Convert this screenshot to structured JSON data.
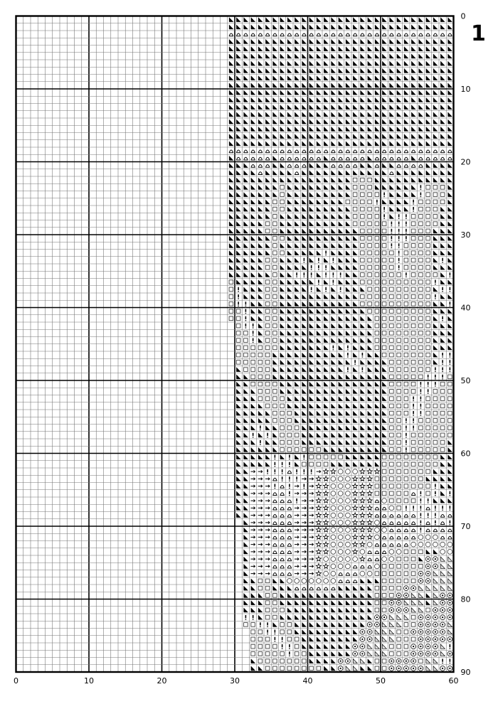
{
  "page_number": "1",
  "grid": {
    "columns": 60,
    "rows": 90,
    "major_every": 10,
    "pattern_start_column": 29
  },
  "x_axis_labels": [
    "0",
    "10",
    "20",
    "30",
    "40",
    "50",
    "60"
  ],
  "y_axis_labels": [
    "0",
    "10",
    "20",
    "30",
    "40",
    "50",
    "60",
    "70",
    "80",
    "90"
  ],
  "symbol_key": {
    "B": "black-triangle",
    "L": "light-triangle",
    "H": "bell-outline",
    "S": "square-outline",
    "!": "exclamation",
    "A": "arrow-right",
    "O": "circle-outline",
    "T": "star-outline",
    "D": "dot-circle",
    ".": "empty"
  },
  "pattern_rows": [
    "BBBBBBBBBBBBBBBBBBBBBBBBBBBBBBB",
    "BBBBBBBBBBBBBBBBBBBBBBBBBBBBBBB",
    "HHHHHHHHHHHHHHHHHHHHHHHHHHHHHHH",
    "BBBBBBBBBBBBBBBBBBBBBBBBBBBBBBB",
    "BBBBBBBBBBBBBBBBBBBBBBBBBBBBBBB",
    "BBBBBBBBBBBBBBBBBBBBBBBBBBBBBBB",
    "BBBBBBBBBBBBBBBBBBBBBBBBBBBBBBB",
    "BBBBBBBBBBBBBBBBBBBBBBBBBBBBBBB",
    "BBBBBBBBBBBBBBBBBBBBBBBBBBBBBBB",
    "BBBBBBBBBBBBBBBBBBBBBBBBBBBBBBB",
    "BBBBBBBBBBBBBBBBBBBBBBBBBBBBBBB",
    "BBBBBBBBBBBBBBBBBBBBBBBBBBBBBBB",
    "BBBBBBBBBBBBBBBBBBBBBBBBBBBBBBB",
    "BBBBBBBBBBBBBBBBBBBBBBBBBBBBBBB",
    "BBBBBBBBBBBBBBBBBBBBBBBBBBBBBBB",
    "BBBBBBBBBBBBBBBBBBBBBBBBBBBBBBB",
    "BBBBBBBBBBBBBBBBBBBBBBBBBBBBBBB",
    "BBBBBBBBBBBBBBBBBBBBBBBBBBBBBBB",
    "HHHHHHHHHHHHHHHHHHHHHHHHHHHHHHH",
    "BHHHHHBHHHHHHBHHHHHBHHHHHBHHHHH",
    "BBBHHHBBHHHBBBHHHHBBHBBHHHHBBBB",
    "BBBBHBBBBHBBBBBBBBBBBBHBBBBBBBB",
    "BBBBBBBBBBBBBBBBBSSSBBBBBBBBBBB",
    "BBBBBBBSBBBBBBBBBSSSBBBBBB!SSSB",
    "BBBBBBBSBBBBBBBBBSSSS!BBBB!SSSB",
    "BBBBBBSSBBBBBBBBSSSS!BBBB!SSSSB",
    "BBBBBBSSBBBBBBBBBSSSS!BBB!SSSBB",
    "BBBBBBSBBBBBBBBBBSSSS!B!!SSSSBB",
    "BBBBBSSBBBBBBBBBBSSSSS!!!SSSSBB",
    "BBBBBSSBBBBBBBBBBBSSSS!!!SSSBBB",
    "BBBBBBSSBBBBBBBBBBSSSS!!!SSSBBB",
    "BBBBBBSBBBBBBBBBBBSSSS!!SSSSBBB",
    "BBBBBBSSBBBBB!BBBBSSSSS!SSSSBBB",
    "BBBBBSSBBB!B!B!BBBSSSSS!SSSSB!B",
    "BBBBBSSBBBB!!!BBBBSSSSS!SSSSBBB",
    "BBBBBBSBB!!!B!!!BBSSSSSS!SSSSB!",
    "SBBBBSSBBBBB!B!BBBSSSSSSSSSS!BB",
    "S!BBBSSBBBB!B!B!BBBSSSSSSSSSB!!",
    "S!BBBSSBBBBBBBBBBBSSSSSSSSSS!BB",
    "S!!BBSSBBBBBBBBBBBSSSSSSSSSSBB!",
    "SS!BBSSBBBBBBBBBBBBSSSSSSSSSBBB",
    "SS!BBSSBBBBBBBBBBBBBSSSSSSSSB!B",
    ".S!!BSSBBBBBBBBBBBBBSSSSSSSSBBB",
    ".SS!BSSBBBBBBBBBBBBBSSSSSSSSBBB",
    ".SS!BSSBBBBBBBBBBBBBSSSSSSSSBBB",
    ".SSSSSSBBBBBBB!B!BBBSSSSSSSSBBB",
    ".SSSSSBBBBBBBBBB!B!BBSSSSSSSB!!",
    ".SSSSSBBBBBBBBBBB!BBBBSSSSSSB!!",
    ".BSSSSBBBBBBBBBB!B!BBBSSSSSS!!!",
    ".BBSSSBBBBBBBBBBBBBBBBSSSSS!!!S",
    ".BBSSSSBBBBBBBBBBBBBBBSSSS!!!SS",
    ".BBBSSSBBBBBBBBBBBBBBBSSSS!!SSS",
    ".BBBSSSSBBBBBBBBBBBBBBSSS!!SSSS",
    ".BBBBSSSBBBBBBBBBBBBBBSSS!!SSSS",
    ".BBBBBSSSBBBBBBBBBBBBBSSS!!SSSS",
    ".BBBBBSSSBBBBBBBBBBBBBSS!!SSSSS",
    ".BBB!BBSSSBBBBBBBBBBBBSS!!SSSSS",
    ".BB!B!BSSSBBBBBBBBBBBBSS!SSSSSS",
    ".BBB!BBSSSBBBBBBBBBBBBSS!SSSSSB",
    ".BBBBBBSSSSSSBBBBBBBBBSS!SSSSSB",
    ".BBBBB!B!B!SSSSSBBBBBSSSSSSSSBB",
    ".BBBBB!!!BSSSSBBBBBBBSSSSSSSSBB",
    ".BBAA!!!H!!!ATTOOOTTTSSSSSSSBBB",
    ".BBAAAH!!!AATTOOOTTTSSSSSSSBBBB",
    ".BBAAA!H!A!ATTOOOTTTSSSSSSSS!BB",
    ".BBAAAHH!AAATTOOOTTTSSSSSH!S!B!",
    ".BBAAAHHH!AATTOOOTTTHOSSSS!!BBB",
    ".BBAAAHHHAAATTOOOTTTHHOS!!!H!!!",
    ".BBAAAHHHAAATTOOOTTTHHHHHH!!!HH",
    "..BAAAHHHAAATTOOOTTTOHHHHH!H!H!",
    "..BAAAHHHAAATTOOOTTTOOHHHH!HHHH",
    "..BAAAHHHAAATTOOOTTTOHHHHHOOOHH",
    "..BAAAHHHAAATTOOOTTOHHHHHOOOOOO",
    "..BAAAHHHAAATTOOOTOHHHOOSSSBBOO",
    "..BAAAHHHAAATOOOOOTHHOOSSSBDDLL",
    "..BAAAHHHAAATTOOOHHHOSSSSSSDDLL",
    "..BAAAHHHAAATOOHHHOOSSSSSSDDLLL",
    "..BBSSBBOOOOOOOHHHBBBSSSSSDDLLL",
    "..BBSSBBBHHHHHHBBBBBSSSSDDLLLLL",
    "..BBBSSBBBBBBBBBBBBBSSSDDLLBLDD",
    "..BBBSSBBBBBBBBBBBBBSSDDLLLBLDD",
    "..BBBSSSBBBBBBBBBBBBSSDDDLLSDDD",
    "..!!BSSBBBBBBBBBBBBBDDLLLSDDDDD",
    "..SS!!BSSBBBBBBBBBBDDLLLSSDDDDL",
    "...SS!!SSBBBBBBBBBDDLLLSSDDDDDL",
    "...SSS!!SSBBBBBBBBDDLLLSSSDDDDD",
    "...SSSS!!SBBBBBBBDDLLLSSSDDDDL!",
    "...SSSSS!SSBBBBBBDDLLLSSSDDDDLD",
    "...BSSSSSSSBBBBDDLLBSSDDDDSLL!!",
    "...BBSSSSSSSSBBDLLBBSSDDDDDLLDD"
  ]
}
